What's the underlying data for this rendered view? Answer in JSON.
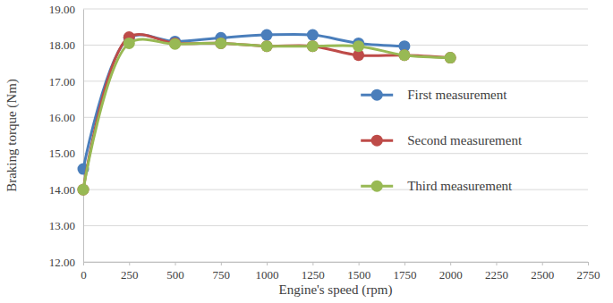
{
  "chart_data": {
    "type": "line",
    "x_label": "Engine's speed (rpm)",
    "y_label": "Braking torque (Nm)",
    "x": [
      0,
      250,
      500,
      750,
      1000,
      1250,
      1500,
      1750,
      2000
    ],
    "series": [
      {
        "name": "First measurement",
        "color": "#4a7ebb",
        "values": [
          14.57,
          18.2,
          18.1,
          18.2,
          18.28,
          18.28,
          18.05,
          17.97,
          null
        ]
      },
      {
        "name": "Second measurement",
        "color": "#be4b48",
        "values": [
          14.0,
          18.22,
          18.05,
          18.05,
          17.97,
          17.97,
          17.72,
          17.72,
          17.65
        ]
      },
      {
        "name": "Third measurement",
        "color": "#98b954",
        "values": [
          14.0,
          18.05,
          18.03,
          18.05,
          17.97,
          17.97,
          17.97,
          17.72,
          17.65
        ]
      }
    ],
    "xlim": [
      0,
      2750
    ],
    "xticks": [
      0,
      250,
      500,
      750,
      1000,
      1250,
      1500,
      1750,
      2000,
      2250,
      2500,
      2750
    ],
    "ylim": [
      12,
      19
    ],
    "yticks": [
      {
        "value": 12,
        "label": "12.00"
      },
      {
        "value": 13,
        "label": "13.00"
      },
      {
        "value": 14,
        "label": "14.00"
      },
      {
        "value": 15,
        "label": "15.00"
      },
      {
        "value": 16,
        "label": "16.00"
      },
      {
        "value": 17,
        "label": "17.00"
      },
      {
        "value": 18,
        "label": "18.00"
      },
      {
        "value": 19,
        "label": "19.00"
      }
    ],
    "grid": true,
    "legend": "right",
    "marker": "circle",
    "line_style": "solid"
  }
}
